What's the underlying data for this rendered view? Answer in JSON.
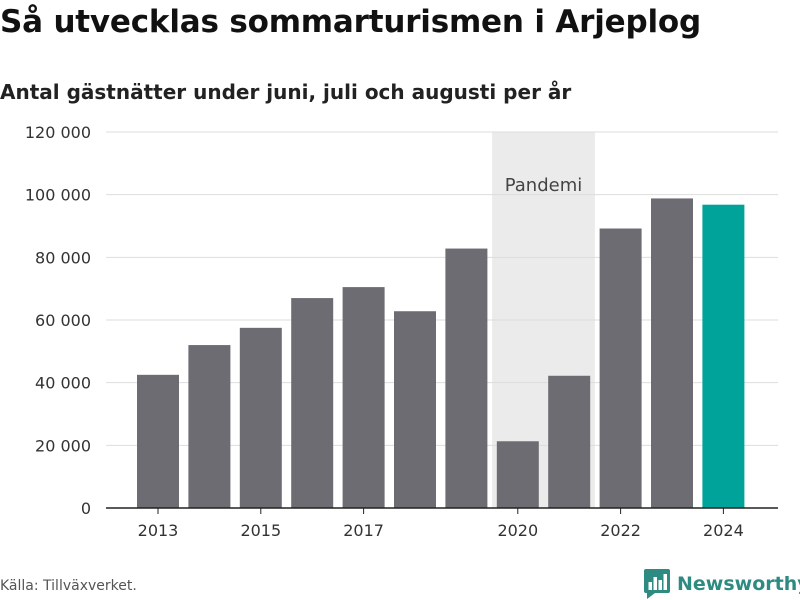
{
  "header": {
    "title": "Så utvecklas sommarturismen i Arjeplog",
    "subtitle": "Antal gästnätter under juni, juli och augusti per år"
  },
  "footer": {
    "source": "Källa: Tillväxverket.",
    "brand": "Newsworthy",
    "brand_icon": "bar-chart-logo-icon"
  },
  "colors": {
    "bar": "#6d6c72",
    "highlight": "#00a39a",
    "shade": "#ebebeb",
    "grid": "#dddddd",
    "axis": "#222222",
    "brand": "#2d8b82"
  },
  "chart_data": {
    "type": "bar",
    "x": [
      2013,
      2014,
      2015,
      2016,
      2017,
      2018,
      2019,
      2020,
      2021,
      2022,
      2023,
      2024
    ],
    "values": [
      42500,
      52000,
      57500,
      67000,
      70500,
      62800,
      82800,
      21300,
      42200,
      89200,
      98800,
      96800
    ],
    "highlight_index": 11,
    "ylim": [
      0,
      120000
    ],
    "yticks": [
      0,
      20000,
      40000,
      60000,
      80000,
      100000,
      120000
    ],
    "ytick_labels": [
      "0",
      "20 000",
      "40 000",
      "60 000",
      "80 000",
      "100 000",
      "120 000"
    ],
    "xticks": [
      2013,
      2015,
      2017,
      2020,
      2022,
      2024
    ],
    "xtick_labels": [
      "2013",
      "2015",
      "2017",
      "2020",
      "2022",
      "2024"
    ],
    "annotation": {
      "label": "Pandemi",
      "x_from": 2020,
      "x_to": 2021
    },
    "grid": true,
    "legend": false
  }
}
